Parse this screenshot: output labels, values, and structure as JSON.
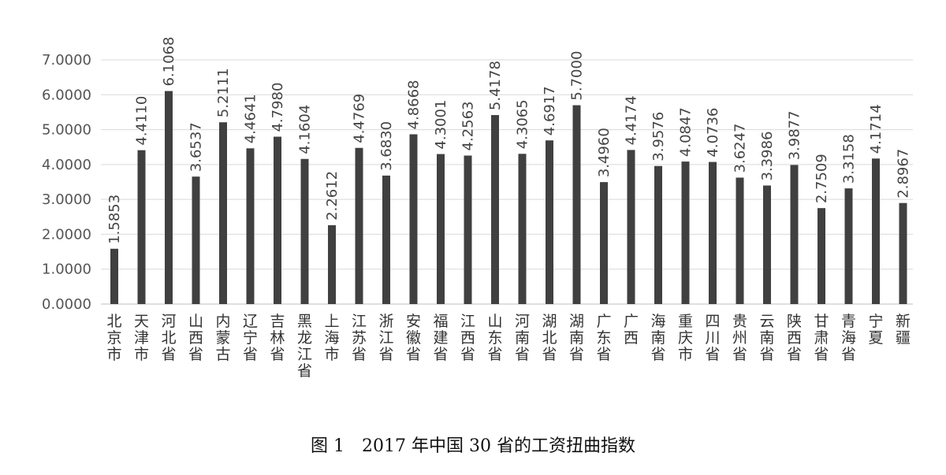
{
  "figure": {
    "caption": "图 1　2017 年中国 30 省的工资扭曲指数"
  },
  "colors": {
    "bar": "#404040",
    "grid": "#d9d9d9",
    "axis": "#bfbfbf"
  },
  "chart_data": {
    "type": "bar",
    "title": "",
    "xlabel": "",
    "ylabel": "",
    "ylim": [
      0,
      7
    ],
    "yticks": [
      "0.0000",
      "1.0000",
      "2.0000",
      "3.0000",
      "4.0000",
      "5.0000",
      "6.0000",
      "7.0000"
    ],
    "grid": true,
    "categories": [
      "北京市",
      "天津市",
      "河北省",
      "山西省",
      "内蒙古",
      "辽宁省",
      "吉林省",
      "黑龙江省",
      "上海市",
      "江苏省",
      "浙江省",
      "安徽省",
      "福建省",
      "江西省",
      "山东省",
      "河南省",
      "湖北省",
      "湖南省",
      "广东省",
      "广西",
      "海南省",
      "重庆市",
      "四川省",
      "贵州省",
      "云南省",
      "陕西省",
      "甘肃省",
      "青海省",
      "宁夏",
      "新疆"
    ],
    "values": [
      1.5853,
      4.411,
      6.1068,
      3.6537,
      5.2111,
      4.4641,
      4.798,
      4.1604,
      2.2612,
      4.4769,
      3.683,
      4.8668,
      4.3001,
      4.2563,
      5.4178,
      4.3065,
      4.6917,
      5.7,
      3.496,
      4.4174,
      3.9576,
      4.0847,
      4.0736,
      3.6247,
      3.3986,
      3.9877,
      2.7509,
      3.3158,
      4.1714,
      2.8967
    ],
    "data_labels": [
      "1.5853",
      "4.4110",
      "6.1068",
      "3.6537",
      "5.2111",
      "4.4641",
      "4.7980",
      "4.1604",
      "2.2612",
      "4.4769",
      "3.6830",
      "4.8668",
      "4.3001",
      "4.2563",
      "5.4178",
      "4.3065",
      "4.6917",
      "5.7000",
      "3.4960",
      "4.4174",
      "3.9576",
      "4.0847",
      "4.0736",
      "3.6247",
      "3.3986",
      "3.9877",
      "2.7509",
      "3.3158",
      "4.1714",
      "2.8967"
    ]
  }
}
